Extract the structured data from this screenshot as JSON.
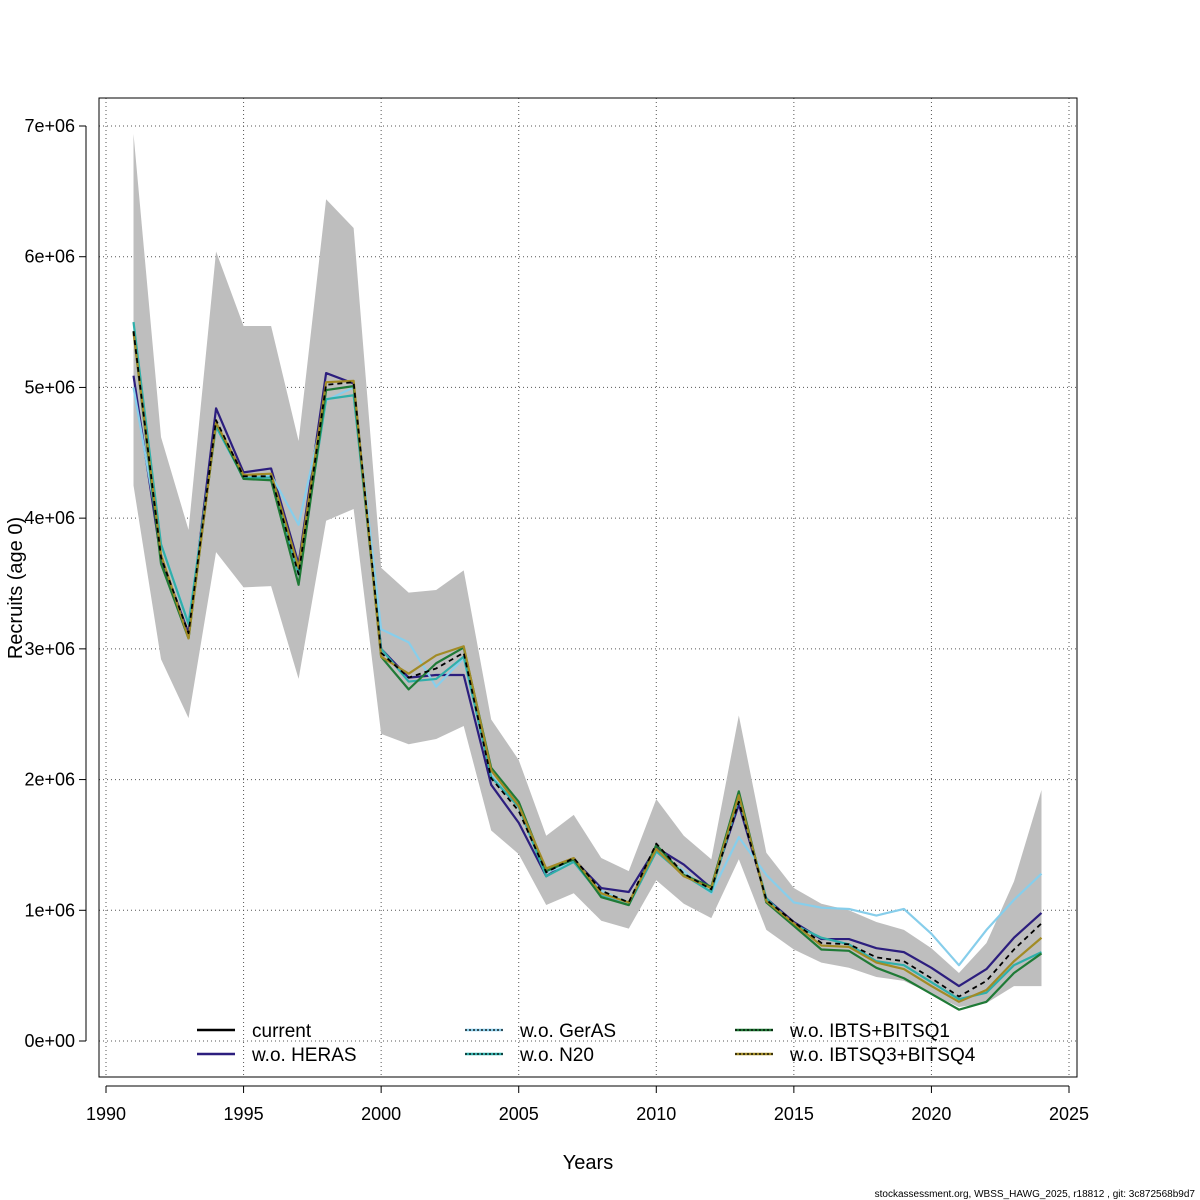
{
  "chart_data": {
    "type": "line",
    "xlabel": "Years",
    "ylabel": "Recruits (age 0)",
    "xlim": [
      1990,
      2025
    ],
    "ylim": [
      0,
      7000000
    ],
    "x_ticks": [
      1990,
      1995,
      2000,
      2005,
      2010,
      2015,
      2020,
      2025
    ],
    "y_ticks": [
      0,
      1000000,
      2000000,
      3000000,
      4000000,
      5000000,
      6000000,
      7000000
    ],
    "x_tick_labels": [
      "1990",
      "1995",
      "2000",
      "2005",
      "2010",
      "2015",
      "2020",
      "2025"
    ],
    "y_tick_labels": [
      "0e+00",
      "1e+06",
      "2e+06",
      "3e+06",
      "4e+06",
      "5e+06",
      "6e+06",
      "7e+06"
    ],
    "grid": true,
    "grid_style": "dotted",
    "legend_position": "bottom",
    "x": [
      1991,
      1992,
      1993,
      1994,
      1995,
      1996,
      1997,
      1998,
      1999,
      2000,
      2001,
      2002,
      2003,
      2004,
      2005,
      2006,
      2007,
      2008,
      2009,
      2010,
      2011,
      2012,
      2013,
      2014,
      2015,
      2016,
      2017,
      2018,
      2019,
      2020,
      2021,
      2022,
      2023,
      2024
    ],
    "confidence_band": {
      "color": "#bebebe",
      "lower": [
        4250000,
        2920000,
        2470000,
        3740000,
        3470000,
        3480000,
        2770000,
        3980000,
        4070000,
        2350000,
        2270000,
        2310000,
        2410000,
        1610000,
        1430000,
        1040000,
        1130000,
        920000,
        860000,
        1230000,
        1050000,
        940000,
        1390000,
        850000,
        700000,
        600000,
        560000,
        490000,
        460000,
        360000,
        260000,
        290000,
        420000,
        420000
      ],
      "upper": [
        6940000,
        4620000,
        3910000,
        6040000,
        5470000,
        5470000,
        4590000,
        6440000,
        6220000,
        3620000,
        3430000,
        3450000,
        3600000,
        2460000,
        2150000,
        1570000,
        1730000,
        1400000,
        1300000,
        1850000,
        1570000,
        1390000,
        2490000,
        1440000,
        1170000,
        1050000,
        1000000,
        910000,
        850000,
        710000,
        520000,
        750000,
        1220000,
        1920000
      ]
    },
    "series": [
      {
        "name": "current",
        "color": "#000000",
        "dash": "solid",
        "values": [
          5430000,
          3700000,
          3120000,
          4750000,
          4320000,
          4320000,
          3570000,
          5020000,
          5040000,
          2970000,
          2780000,
          2850000,
          2970000,
          2010000,
          1760000,
          1290000,
          1400000,
          1150000,
          1060000,
          1510000,
          1280000,
          1160000,
          1830000,
          1080000,
          910000,
          750000,
          740000,
          640000,
          610000,
          480000,
          340000,
          460000,
          700000,
          900000
        ]
      },
      {
        "name": "w.o. HERAS",
        "color": "#2c1e7e",
        "dash": "solid",
        "values": [
          5090000,
          3690000,
          3120000,
          4840000,
          4350000,
          4380000,
          3650000,
          5110000,
          5030000,
          3000000,
          2780000,
          2800000,
          2800000,
          1960000,
          1670000,
          1260000,
          1390000,
          1170000,
          1140000,
          1480000,
          1350000,
          1170000,
          1810000,
          1090000,
          910000,
          780000,
          780000,
          710000,
          680000,
          560000,
          420000,
          550000,
          790000,
          980000
        ]
      },
      {
        "name": "w.o. GerAS",
        "color": "#87ceeb",
        "dash": "dotted",
        "values": [
          5000000,
          3800000,
          3200000,
          4700000,
          4300000,
          4330000,
          3950000,
          4900000,
          5000000,
          3150000,
          3050000,
          2710000,
          2930000,
          2030000,
          1800000,
          1290000,
          1370000,
          1150000,
          1060000,
          1450000,
          1300000,
          1130000,
          1560000,
          1270000,
          1060000,
          1020000,
          1010000,
          960000,
          1010000,
          820000,
          580000,
          850000,
          1080000,
          1280000
        ]
      },
      {
        "name": "w.o. N20",
        "color": "#2fafaa",
        "dash": "dotted",
        "values": [
          5500000,
          3800000,
          3190000,
          4700000,
          4310000,
          4310000,
          3570000,
          4910000,
          4940000,
          3000000,
          2750000,
          2770000,
          2940000,
          2020000,
          1790000,
          1260000,
          1370000,
          1110000,
          1040000,
          1450000,
          1270000,
          1140000,
          1860000,
          1090000,
          890000,
          790000,
          740000,
          610000,
          580000,
          450000,
          320000,
          370000,
          580000,
          680000
        ]
      },
      {
        "name": "w.o. IBTS+BITSQ1",
        "color": "#1f7a36",
        "dash": "dotted",
        "values": [
          5430000,
          3650000,
          3080000,
          4730000,
          4300000,
          4290000,
          3490000,
          4980000,
          5010000,
          2940000,
          2690000,
          2890000,
          3010000,
          2090000,
          1830000,
          1300000,
          1390000,
          1100000,
          1040000,
          1500000,
          1270000,
          1180000,
          1910000,
          1060000,
          880000,
          700000,
          690000,
          560000,
          480000,
          360000,
          240000,
          300000,
          520000,
          670000
        ]
      },
      {
        "name": "w.o. IBTSQ3+BITSQ4",
        "color": "#a28b25",
        "dash": "dotted",
        "values": [
          5420000,
          3720000,
          3080000,
          4730000,
          4330000,
          4340000,
          3620000,
          5040000,
          5050000,
          2940000,
          2810000,
          2950000,
          3020000,
          2070000,
          1800000,
          1320000,
          1400000,
          1130000,
          1060000,
          1470000,
          1260000,
          1170000,
          1880000,
          1070000,
          900000,
          730000,
          720000,
          600000,
          550000,
          420000,
          300000,
          390000,
          610000,
          790000
        ]
      }
    ],
    "footnote": "stockassessment.org, WBSS_HAWG_2025, r18812 , git: 3c872568b9d7"
  }
}
